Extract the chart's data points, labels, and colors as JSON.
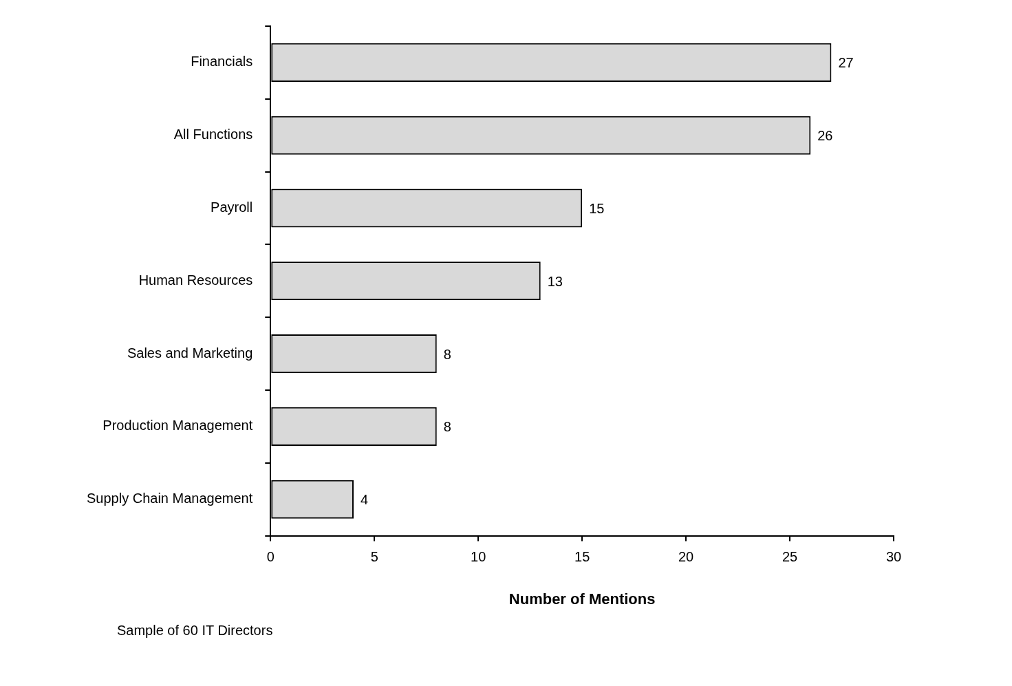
{
  "chart_data": {
    "type": "bar",
    "orientation": "horizontal",
    "categories": [
      "Financials",
      "All Functions",
      "Payroll",
      "Human Resources",
      "Sales and Marketing",
      "Production Management",
      "Supply Chain Management"
    ],
    "values": [
      27,
      26,
      15,
      13,
      8,
      8,
      4
    ],
    "color": "#d9d9d9",
    "xlim": [
      0,
      30
    ],
    "xticks": [
      0,
      5,
      10,
      15,
      20,
      25,
      30
    ],
    "xlabel": "Number of Mentions",
    "data_labels": true,
    "annotations": [
      "Sample of 60 IT Directors"
    ]
  }
}
